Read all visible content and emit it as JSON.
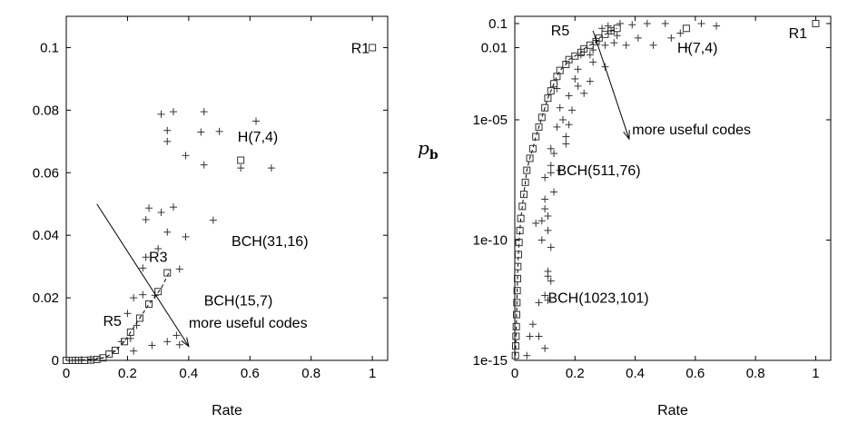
{
  "chart_data": [
    {
      "type": "scatter",
      "xlabel": "Rate",
      "ylabel": "",
      "xlim": [
        0,
        1.05
      ],
      "ylim": [
        0,
        0.11
      ],
      "x_ticks": [
        "0",
        "0.2",
        "0.4",
        "0.6",
        "0.8",
        "1"
      ],
      "y_ticks": [
        "0",
        "0.02",
        "0.04",
        "0.06",
        "0.08",
        "0.1"
      ],
      "y_tick_values": [
        0,
        0.02,
        0.04,
        0.06,
        0.08,
        0.1
      ],
      "x_tick_values": [
        0,
        0.2,
        0.4,
        0.6,
        0.8,
        1
      ],
      "series": [
        {
          "marker": "plus",
          "points": [
            [
              0.31,
              0.0787
            ],
            [
              0.35,
              0.0795
            ],
            [
              0.45,
              0.0795
            ],
            [
              0.62,
              0.0765
            ],
            [
              0.33,
              0.0735
            ],
            [
              0.44,
              0.073
            ],
            [
              0.5,
              0.0732
            ],
            [
              0.33,
              0.07
            ],
            [
              0.39,
              0.0655
            ],
            [
              0.45,
              0.0625
            ],
            [
              0.57,
              0.0615
            ],
            [
              0.67,
              0.0615
            ],
            [
              0.27,
              0.0487
            ],
            [
              0.31,
              0.0473
            ],
            [
              0.35,
              0.049
            ],
            [
              0.26,
              0.045
            ],
            [
              0.33,
              0.041
            ],
            [
              0.39,
              0.0395
            ],
            [
              0.48,
              0.0448
            ],
            [
              0.3,
              0.0357
            ],
            [
              0.26,
              0.033
            ],
            [
              0.25,
              0.0295
            ],
            [
              0.37,
              0.0292
            ],
            [
              0.22,
              0.02
            ],
            [
              0.25,
              0.021
            ],
            [
              0.29,
              0.0208
            ],
            [
              0.2,
              0.015
            ],
            [
              0.23,
              0.0112
            ],
            [
              0.21,
              0.007
            ],
            [
              0.18,
              0.006
            ],
            [
              0.15,
              0.003
            ],
            [
              0.22,
              0.003
            ],
            [
              0.28,
              0.0048
            ],
            [
              0.33,
              0.006
            ],
            [
              0.36,
              0.008
            ],
            [
              0.37,
              0.005
            ],
            [
              0.11,
              0.0008
            ],
            [
              0.08,
              0.0004
            ],
            [
              0.05,
              0.0002
            ],
            [
              0.03,
              0.0001
            ]
          ]
        },
        {
          "marker": "square",
          "points": [
            [
              0.0,
              0.0
            ],
            [
              0.02,
              0.0
            ],
            [
              0.03,
              0.0
            ],
            [
              0.04,
              0.0
            ],
            [
              0.06,
              0.0
            ],
            [
              0.08,
              0.0001
            ],
            [
              0.1,
              0.0003
            ],
            [
              0.12,
              0.0008
            ],
            [
              0.14,
              0.002
            ],
            [
              0.16,
              0.0032
            ],
            [
              0.19,
              0.006
            ],
            [
              0.21,
              0.009
            ],
            [
              0.24,
              0.0135
            ],
            [
              0.27,
              0.018
            ],
            [
              0.3,
              0.022
            ],
            [
              0.33,
              0.028
            ],
            [
              0.57,
              0.064
            ],
            [
              1.0,
              0.1
            ]
          ],
          "dashed_segment": [
            [
              0.05,
              0.0
            ],
            [
              0.09,
              0.0002
            ],
            [
              0.13,
              0.001
            ],
            [
              0.16,
              0.003
            ],
            [
              0.19,
              0.006
            ],
            [
              0.23,
              0.012
            ],
            [
              0.27,
              0.018
            ],
            [
              0.31,
              0.023
            ],
            [
              0.34,
              0.029
            ]
          ]
        }
      ],
      "annotations": {
        "r1": "R1",
        "h74": "H(7,4)",
        "bch3116": "BCH(31,16)",
        "r3": "R3",
        "bch157": "BCH(15,7)",
        "r5": "R5",
        "useful": "more useful codes"
      },
      "arrow": {
        "from": [
          0.1,
          0.05
        ],
        "to": [
          0.4,
          0.0045
        ]
      }
    },
    {
      "type": "scatter",
      "xlabel": "Rate",
      "ylabel": "p",
      "ylabel_sub": "b",
      "y_scale": "log",
      "xlim": [
        0,
        1.05
      ],
      "ylim_log10": [
        -15,
        -0.7
      ],
      "x_ticks": [
        "0",
        "0.2",
        "0.4",
        "0.6",
        "0.8",
        "1"
      ],
      "x_tick_values": [
        0,
        0.2,
        0.4,
        0.6,
        0.8,
        1
      ],
      "y_ticks": [
        "0.1",
        "0.01",
        "1e-05",
        "1e-10",
        "1e-15"
      ],
      "y_tick_log10": [
        -1,
        -2,
        -5,
        -10,
        -15
      ],
      "series": [
        {
          "marker": "plus",
          "points_log10": [
            [
              0.29,
              -1.2
            ],
            [
              0.31,
              -1.1
            ],
            [
              0.35,
              -1.0
            ],
            [
              0.39,
              -1.05
            ],
            [
              0.44,
              -1.0
            ],
            [
              0.5,
              -1.0
            ],
            [
              0.55,
              -1.4
            ],
            [
              0.62,
              -1.0
            ],
            [
              0.67,
              -1.1
            ],
            [
              0.32,
              -1.3
            ],
            [
              0.34,
              -1.5
            ],
            [
              0.27,
              -1.7
            ],
            [
              0.3,
              -1.9
            ],
            [
              0.26,
              -2.1
            ],
            [
              0.33,
              -1.8
            ],
            [
              0.37,
              -1.9
            ],
            [
              0.41,
              -1.6
            ],
            [
              0.46,
              -1.9
            ],
            [
              0.52,
              -1.6
            ],
            [
              0.57,
              -2.0
            ],
            [
              0.22,
              -2.3
            ],
            [
              0.25,
              -2.3
            ],
            [
              0.21,
              -2.9
            ],
            [
              0.26,
              -2.6
            ],
            [
              0.3,
              -2.8
            ],
            [
              0.2,
              -3.3
            ],
            [
              0.25,
              -3.4
            ],
            [
              0.23,
              -3.9
            ],
            [
              0.18,
              -4.0
            ],
            [
              0.19,
              -4.6
            ],
            [
              0.21,
              -3.6
            ],
            [
              0.18,
              -5.2
            ],
            [
              0.14,
              -5.3
            ],
            [
              0.17,
              -5.7
            ],
            [
              0.13,
              -6.4
            ],
            [
              0.15,
              -7.1
            ],
            [
              0.12,
              -6.9
            ],
            [
              0.13,
              -8.0
            ],
            [
              0.1,
              -8.3
            ],
            [
              0.11,
              -9.0
            ],
            [
              0.07,
              -9.3
            ],
            [
              0.09,
              -10.0
            ],
            [
              0.11,
              -11.5
            ],
            [
              0.12,
              -11.7
            ],
            [
              0.11,
              -12.5
            ],
            [
              0.08,
              -14.0
            ],
            [
              0.05,
              -14.0
            ],
            [
              0.1,
              -14.5
            ],
            [
              0.14,
              -3.7
            ],
            [
              0.15,
              -4.5
            ],
            [
              0.16,
              -5.0
            ],
            [
              0.17,
              -6.0
            ],
            [
              0.12,
              -6.2
            ],
            [
              0.12,
              -7.2
            ],
            [
              0.1,
              -8.7
            ],
            [
              0.1,
              -7.4
            ],
            [
              0.09,
              -9.2
            ],
            [
              0.11,
              -9.6
            ],
            [
              0.12,
              -10.3
            ],
            [
              0.11,
              -11.3
            ],
            [
              0.1,
              -12.3
            ],
            [
              0.08,
              -12.6
            ],
            [
              0.06,
              -13.5
            ],
            [
              0.04,
              -14.8
            ]
          ]
        },
        {
          "marker": "square",
          "points_log10": [
            [
              0.34,
              -1.2
            ],
            [
              0.32,
              -1.3
            ],
            [
              0.3,
              -1.45
            ],
            [
              0.28,
              -1.6
            ],
            [
              0.27,
              -1.75
            ],
            [
              0.25,
              -1.9
            ],
            [
              0.23,
              -2.05
            ],
            [
              0.22,
              -2.2
            ],
            [
              0.2,
              -2.35
            ],
            [
              0.18,
              -2.5
            ],
            [
              0.17,
              -2.7
            ],
            [
              0.15,
              -2.95
            ],
            [
              0.14,
              -3.2
            ],
            [
              0.13,
              -3.5
            ],
            [
              0.12,
              -3.8
            ],
            [
              0.11,
              -4.1
            ],
            [
              0.1,
              -4.5
            ],
            [
              0.09,
              -4.9
            ],
            [
              0.08,
              -5.3
            ],
            [
              0.07,
              -5.7
            ],
            [
              0.06,
              -6.2
            ],
            [
              0.05,
              -6.6
            ],
            [
              0.04,
              -7.1
            ],
            [
              0.035,
              -7.6
            ],
            [
              0.03,
              -8.1
            ],
            [
              0.025,
              -8.6
            ],
            [
              0.02,
              -9.1
            ],
            [
              0.017,
              -9.6
            ],
            [
              0.014,
              -10.1
            ],
            [
              0.012,
              -10.6
            ],
            [
              0.01,
              -11.1
            ],
            [
              0.009,
              -11.6
            ],
            [
              0.008,
              -12.1
            ],
            [
              0.007,
              -12.6
            ],
            [
              0.006,
              -13.1
            ],
            [
              0.005,
              -13.6
            ],
            [
              0.004,
              -14.0
            ],
            [
              0.003,
              -14.4
            ],
            [
              0.002,
              -14.8
            ],
            [
              0.57,
              -1.2
            ],
            [
              1.0,
              -1.0
            ]
          ]
        }
      ],
      "annotations": {
        "r5": "R5",
        "r1": "R1",
        "h74": "H(7,4)",
        "useful": "more useful codes",
        "bch51176": "BCH(511,76)",
        "bch1023101": "BCH(1023,101)"
      },
      "arrow": {
        "from": [
          0.26,
          -1.3
        ],
        "to": [
          0.38,
          -5.8
        ]
      }
    }
  ]
}
